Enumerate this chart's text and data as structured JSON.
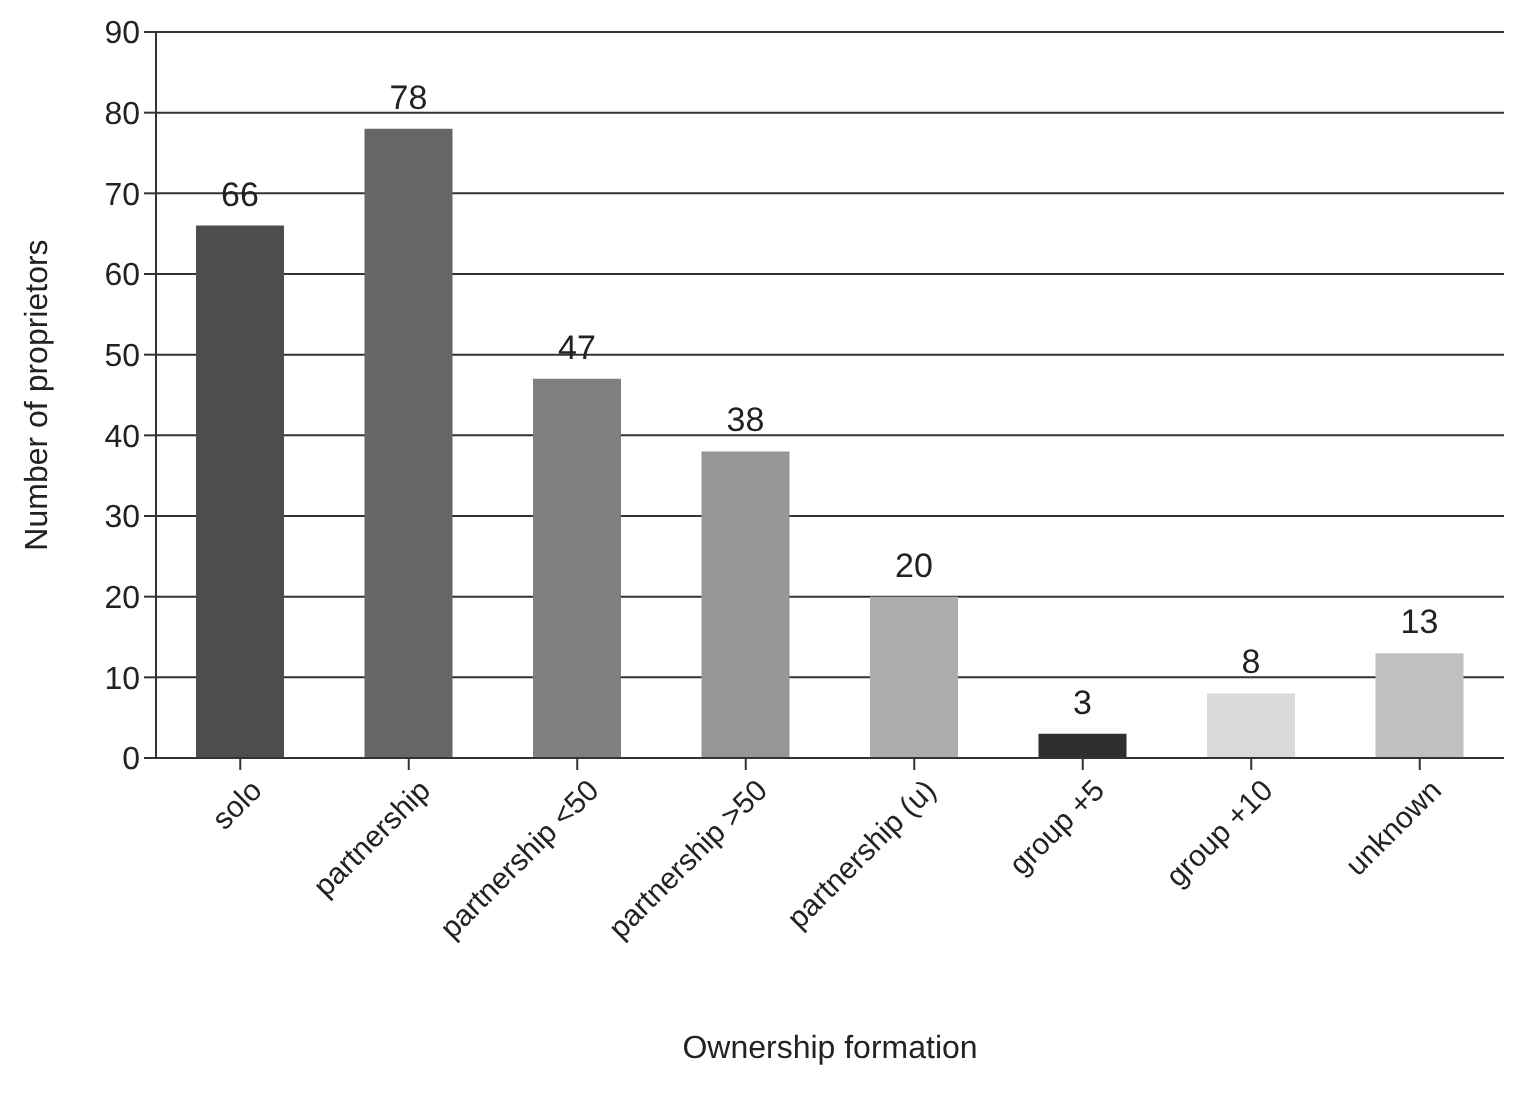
{
  "chart_data": {
    "type": "bar",
    "xlabel": "Ownership formation",
    "ylabel": "Number of proprietors",
    "categories": [
      "solo",
      "partnership",
      "partnership <50",
      "partnership >50",
      "partnership (u)",
      "group +5",
      "group +10",
      "unknown"
    ],
    "values": [
      66,
      78,
      47,
      38,
      20,
      3,
      8,
      13
    ],
    "colors": [
      "#4d4d4d",
      "#666666",
      "#808080",
      "#969696",
      "#adadad",
      "#2e2e2e",
      "#d9d9d9",
      "#c0c0c0"
    ],
    "ylim": [
      0,
      90
    ],
    "yticks": [
      0,
      10,
      20,
      30,
      40,
      50,
      60,
      70,
      80,
      90
    ],
    "grid": "y",
    "data_labels": true,
    "legend": false
  }
}
